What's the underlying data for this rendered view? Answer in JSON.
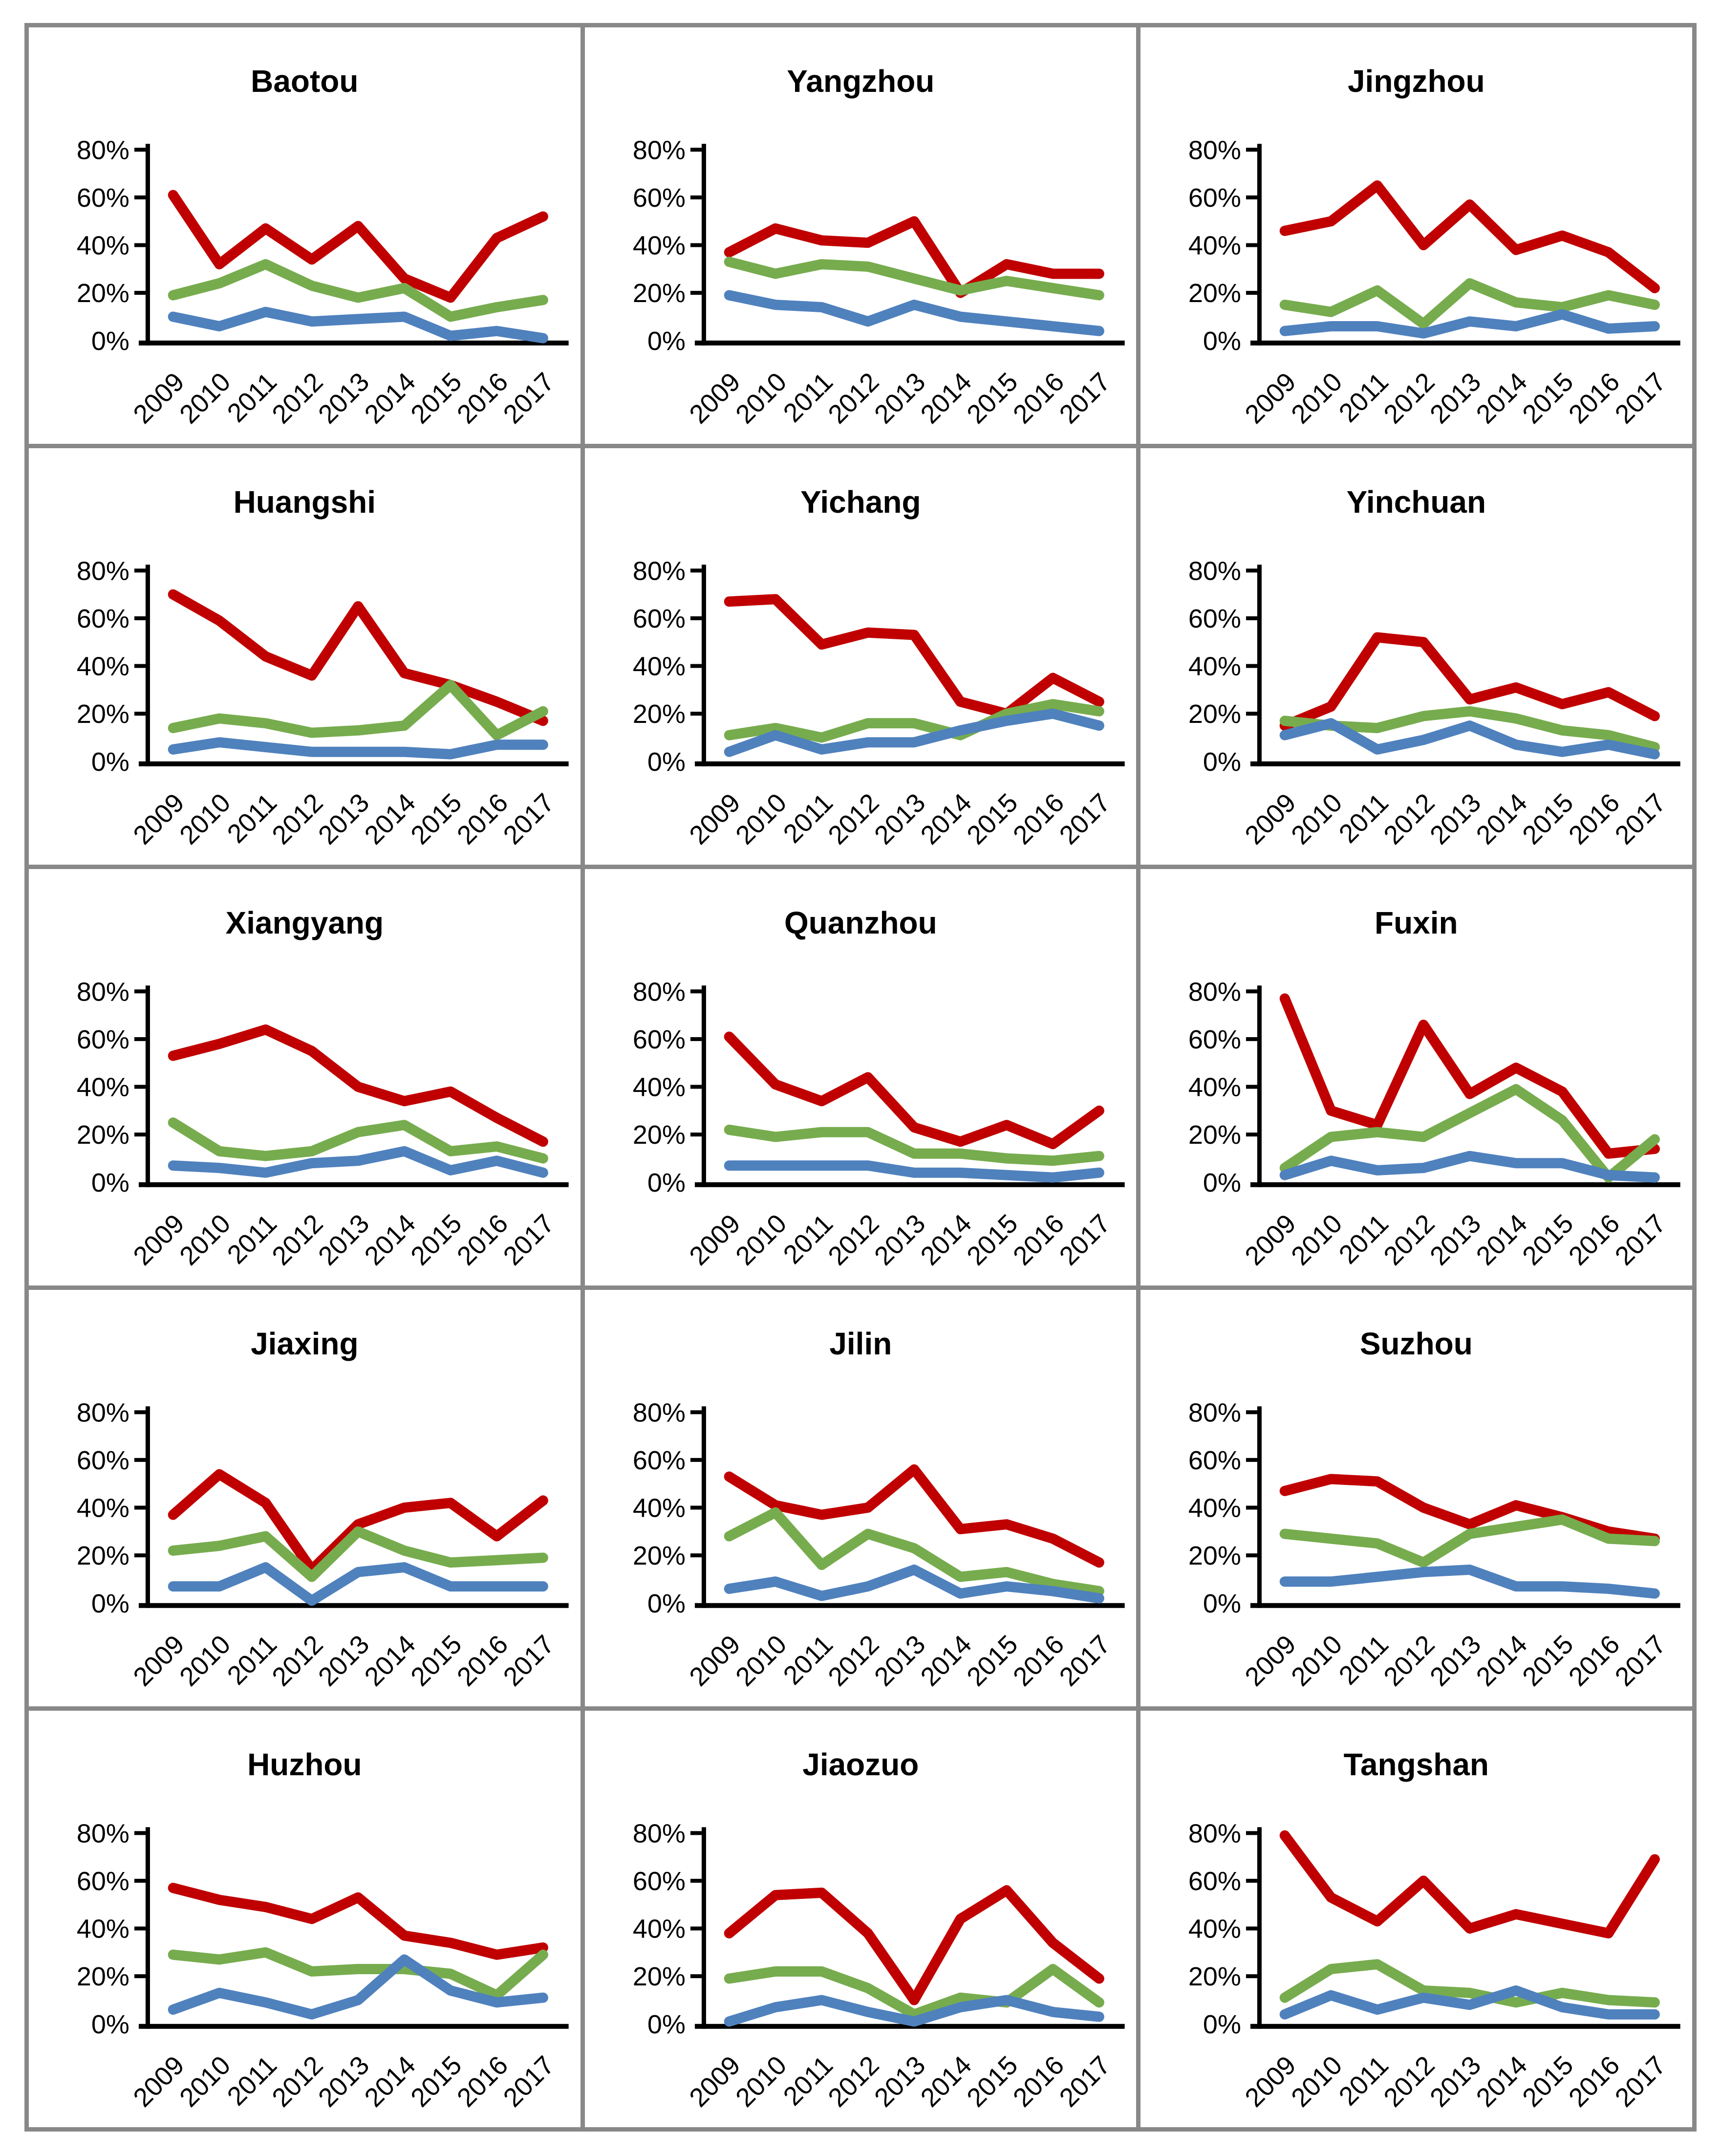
{
  "page": {
    "background": "#ffffff",
    "frame_border_color": "#888888",
    "axis_color": "#000000"
  },
  "series_colors": {
    "red_series": "#C00000",
    "green_series": "#77AC4E",
    "blue_series": "#4F81BD"
  },
  "axis": {
    "y_tick_labels": [
      "0%",
      "20%",
      "40%",
      "60%",
      "80%"
    ],
    "ylim": [
      0,
      80
    ],
    "x_categories": [
      "2009",
      "2010",
      "2011",
      "2012",
      "2013",
      "2014",
      "2015",
      "2016",
      "2017"
    ]
  },
  "chart_data": [
    {
      "type": "line",
      "title": "Baotou",
      "categories": [
        "2009",
        "2010",
        "2011",
        "2012",
        "2013",
        "2014",
        "2015",
        "2016",
        "2017"
      ],
      "ylim": [
        0,
        80
      ],
      "series": [
        {
          "name": "red-series",
          "color": "#C00000",
          "values": [
            61,
            32,
            47,
            34,
            48,
            26,
            18,
            43,
            52
          ]
        },
        {
          "name": "green-series",
          "color": "#77AC4E",
          "values": [
            19,
            24,
            32,
            23,
            18,
            22,
            10,
            14,
            17
          ]
        },
        {
          "name": "blue-series",
          "color": "#4F81BD",
          "values": [
            10,
            6,
            12,
            8,
            9,
            10,
            2,
            4,
            1
          ]
        }
      ]
    },
    {
      "type": "line",
      "title": "Yangzhou",
      "categories": [
        "2009",
        "2010",
        "2011",
        "2012",
        "2013",
        "2014",
        "2015",
        "2016",
        "2017"
      ],
      "ylim": [
        0,
        80
      ],
      "series": [
        {
          "name": "red-series",
          "color": "#C00000",
          "values": [
            37,
            47,
            42,
            41,
            50,
            20,
            32,
            28,
            28
          ]
        },
        {
          "name": "green-series",
          "color": "#77AC4E",
          "values": [
            33,
            28,
            32,
            31,
            26,
            21,
            25,
            22,
            19
          ]
        },
        {
          "name": "blue-series",
          "color": "#4F81BD",
          "values": [
            19,
            15,
            14,
            8,
            15,
            10,
            8,
            6,
            4
          ]
        }
      ]
    },
    {
      "type": "line",
      "title": "Jingzhou",
      "categories": [
        "2009",
        "2010",
        "2011",
        "2012",
        "2013",
        "2014",
        "2015",
        "2016",
        "2017"
      ],
      "ylim": [
        0,
        80
      ],
      "series": [
        {
          "name": "red-series",
          "color": "#C00000",
          "values": [
            46,
            50,
            65,
            40,
            57,
            38,
            44,
            37,
            22
          ]
        },
        {
          "name": "green-series",
          "color": "#77AC4E",
          "values": [
            15,
            12,
            21,
            7,
            24,
            16,
            14,
            19,
            15
          ]
        },
        {
          "name": "blue-series",
          "color": "#4F81BD",
          "values": [
            4,
            6,
            6,
            3,
            8,
            6,
            11,
            5,
            6
          ]
        }
      ]
    },
    {
      "type": "line",
      "title": "Huangshi",
      "categories": [
        "2009",
        "2010",
        "2011",
        "2012",
        "2013",
        "2014",
        "2015",
        "2016",
        "2017"
      ],
      "ylim": [
        0,
        80
      ],
      "series": [
        {
          "name": "red-series",
          "color": "#C00000",
          "values": [
            70,
            59,
            44,
            36,
            65,
            37,
            32,
            25,
            17
          ]
        },
        {
          "name": "green-series",
          "color": "#77AC4E",
          "values": [
            14,
            18,
            16,
            12,
            13,
            15,
            32,
            11,
            21
          ]
        },
        {
          "name": "blue-series",
          "color": "#4F81BD",
          "values": [
            5,
            8,
            6,
            4,
            4,
            4,
            3,
            7,
            7
          ]
        }
      ]
    },
    {
      "type": "line",
      "title": "Yichang",
      "categories": [
        "2009",
        "2010",
        "2011",
        "2012",
        "2013",
        "2014",
        "2015",
        "2016",
        "2017"
      ],
      "ylim": [
        0,
        80
      ],
      "series": [
        {
          "name": "red-series",
          "color": "#C00000",
          "values": [
            67,
            68,
            49,
            54,
            53,
            25,
            20,
            35,
            25
          ]
        },
        {
          "name": "green-series",
          "color": "#77AC4E",
          "values": [
            11,
            14,
            10,
            16,
            16,
            11,
            20,
            24,
            21
          ]
        },
        {
          "name": "blue-series",
          "color": "#4F81BD",
          "values": [
            4,
            11,
            5,
            8,
            8,
            13,
            17,
            20,
            15
          ]
        }
      ]
    },
    {
      "type": "line",
      "title": "Yinchuan",
      "categories": [
        "2009",
        "2010",
        "2011",
        "2012",
        "2013",
        "2014",
        "2015",
        "2016",
        "2017"
      ],
      "ylim": [
        0,
        80
      ],
      "series": [
        {
          "name": "red-series",
          "color": "#C00000",
          "values": [
            15,
            23,
            52,
            50,
            26,
            31,
            24,
            29,
            19
          ]
        },
        {
          "name": "green-series",
          "color": "#77AC4E",
          "values": [
            17,
            15,
            14,
            19,
            21,
            18,
            13,
            11,
            6
          ]
        },
        {
          "name": "blue-series",
          "color": "#4F81BD",
          "values": [
            11,
            16,
            5,
            9,
            15,
            7,
            4,
            7,
            3
          ]
        }
      ]
    },
    {
      "type": "line",
      "title": "Xiangyang",
      "categories": [
        "2009",
        "2010",
        "2011",
        "2012",
        "2013",
        "2014",
        "2015",
        "2016",
        "2017"
      ],
      "ylim": [
        0,
        80
      ],
      "series": [
        {
          "name": "red-series",
          "color": "#C00000",
          "values": [
            53,
            58,
            64,
            55,
            40,
            34,
            38,
            27,
            17
          ]
        },
        {
          "name": "green-series",
          "color": "#77AC4E",
          "values": [
            25,
            13,
            11,
            13,
            21,
            24,
            13,
            15,
            10
          ]
        },
        {
          "name": "blue-series",
          "color": "#4F81BD",
          "values": [
            7,
            6,
            4,
            8,
            9,
            13,
            5,
            9,
            4
          ]
        }
      ]
    },
    {
      "type": "line",
      "title": "Quanzhou",
      "categories": [
        "2009",
        "2010",
        "2011",
        "2012",
        "2013",
        "2014",
        "2015",
        "2016",
        "2017"
      ],
      "ylim": [
        0,
        80
      ],
      "series": [
        {
          "name": "red-series",
          "color": "#C00000",
          "values": [
            61,
            41,
            34,
            44,
            23,
            17,
            24,
            16,
            30
          ]
        },
        {
          "name": "green-series",
          "color": "#77AC4E",
          "values": [
            22,
            19,
            21,
            21,
            12,
            12,
            10,
            9,
            11
          ]
        },
        {
          "name": "blue-series",
          "color": "#4F81BD",
          "values": [
            7,
            7,
            7,
            7,
            4,
            4,
            3,
            2,
            4
          ]
        }
      ]
    },
    {
      "type": "line",
      "title": "Fuxin",
      "categories": [
        "2009",
        "2010",
        "2011",
        "2012",
        "2013",
        "2014",
        "2015",
        "2016",
        "2017"
      ],
      "ylim": [
        0,
        80
      ],
      "series": [
        {
          "name": "red-series",
          "color": "#C00000",
          "values": [
            77,
            30,
            24,
            66,
            37,
            48,
            38,
            12,
            14
          ]
        },
        {
          "name": "green-series",
          "color": "#77AC4E",
          "values": [
            6,
            19,
            21,
            19,
            29,
            39,
            26,
            2,
            18
          ]
        },
        {
          "name": "blue-series",
          "color": "#4F81BD",
          "values": [
            3,
            9,
            5,
            6,
            11,
            8,
            8,
            3,
            2
          ]
        }
      ]
    },
    {
      "type": "line",
      "title": "Jiaxing",
      "categories": [
        "2009",
        "2010",
        "2011",
        "2012",
        "2013",
        "2014",
        "2015",
        "2016",
        "2017"
      ],
      "ylim": [
        0,
        80
      ],
      "series": [
        {
          "name": "red-series",
          "color": "#C00000",
          "values": [
            37,
            54,
            42,
            14,
            33,
            40,
            42,
            28,
            43
          ]
        },
        {
          "name": "green-series",
          "color": "#77AC4E",
          "values": [
            22,
            24,
            28,
            11,
            30,
            22,
            17,
            18,
            19
          ]
        },
        {
          "name": "blue-series",
          "color": "#4F81BD",
          "values": [
            7,
            7,
            15,
            1,
            13,
            15,
            7,
            7,
            7
          ]
        }
      ]
    },
    {
      "type": "line",
      "title": "Jilin",
      "categories": [
        "2009",
        "2010",
        "2011",
        "2012",
        "2013",
        "2014",
        "2015",
        "2016",
        "2017"
      ],
      "ylim": [
        0,
        80
      ],
      "series": [
        {
          "name": "red-series",
          "color": "#C00000",
          "values": [
            53,
            41,
            37,
            40,
            56,
            31,
            33,
            27,
            17
          ]
        },
        {
          "name": "green-series",
          "color": "#77AC4E",
          "values": [
            28,
            38,
            16,
            29,
            23,
            11,
            13,
            8,
            5
          ]
        },
        {
          "name": "blue-series",
          "color": "#4F81BD",
          "values": [
            6,
            9,
            3,
            7,
            14,
            4,
            7,
            5,
            2
          ]
        }
      ]
    },
    {
      "type": "line",
      "title": "Suzhou",
      "categories": [
        "2009",
        "2010",
        "2011",
        "2012",
        "2013",
        "2014",
        "2015",
        "2016",
        "2017"
      ],
      "ylim": [
        0,
        80
      ],
      "series": [
        {
          "name": "red-series",
          "color": "#C00000",
          "values": [
            47,
            52,
            51,
            40,
            33,
            41,
            36,
            30,
            27
          ]
        },
        {
          "name": "green-series",
          "color": "#77AC4E",
          "values": [
            29,
            27,
            25,
            17,
            29,
            32,
            35,
            27,
            26
          ]
        },
        {
          "name": "blue-series",
          "color": "#4F81BD",
          "values": [
            9,
            9,
            11,
            13,
            14,
            7,
            7,
            6,
            4
          ]
        }
      ]
    },
    {
      "type": "line",
      "title": "Huzhou",
      "categories": [
        "2009",
        "2010",
        "2011",
        "2012",
        "2013",
        "2014",
        "2015",
        "2016",
        "2017"
      ],
      "ylim": [
        0,
        80
      ],
      "series": [
        {
          "name": "red-series",
          "color": "#C00000",
          "values": [
            57,
            52,
            49,
            44,
            53,
            37,
            34,
            29,
            32
          ]
        },
        {
          "name": "green-series",
          "color": "#77AC4E",
          "values": [
            29,
            27,
            30,
            22,
            23,
            23,
            21,
            12,
            29
          ]
        },
        {
          "name": "blue-series",
          "color": "#4F81BD",
          "values": [
            6,
            13,
            9,
            4,
            10,
            27,
            14,
            9,
            11
          ]
        }
      ]
    },
    {
      "type": "line",
      "title": "Jiaozuo",
      "categories": [
        "2009",
        "2010",
        "2011",
        "2012",
        "2013",
        "2014",
        "2015",
        "2016",
        "2017"
      ],
      "ylim": [
        0,
        80
      ],
      "series": [
        {
          "name": "red-series",
          "color": "#C00000",
          "values": [
            38,
            54,
            55,
            38,
            10,
            44,
            56,
            34,
            19
          ]
        },
        {
          "name": "green-series",
          "color": "#77AC4E",
          "values": [
            19,
            22,
            22,
            15,
            4,
            11,
            9,
            23,
            9
          ]
        },
        {
          "name": "blue-series",
          "color": "#4F81BD",
          "values": [
            1,
            7,
            10,
            5,
            1,
            7,
            10,
            5,
            3
          ]
        }
      ]
    },
    {
      "type": "line",
      "title": "Tangshan",
      "categories": [
        "2009",
        "2010",
        "2011",
        "2012",
        "2013",
        "2014",
        "2015",
        "2016",
        "2017"
      ],
      "ylim": [
        0,
        80
      ],
      "series": [
        {
          "name": "red-series",
          "color": "#C00000",
          "values": [
            79,
            53,
            43,
            60,
            40,
            46,
            42,
            38,
            69
          ]
        },
        {
          "name": "green-series",
          "color": "#77AC4E",
          "values": [
            11,
            23,
            25,
            14,
            13,
            9,
            13,
            10,
            9
          ]
        },
        {
          "name": "blue-series",
          "color": "#4F81BD",
          "values": [
            4,
            12,
            6,
            11,
            8,
            14,
            7,
            4,
            4
          ]
        }
      ]
    }
  ]
}
